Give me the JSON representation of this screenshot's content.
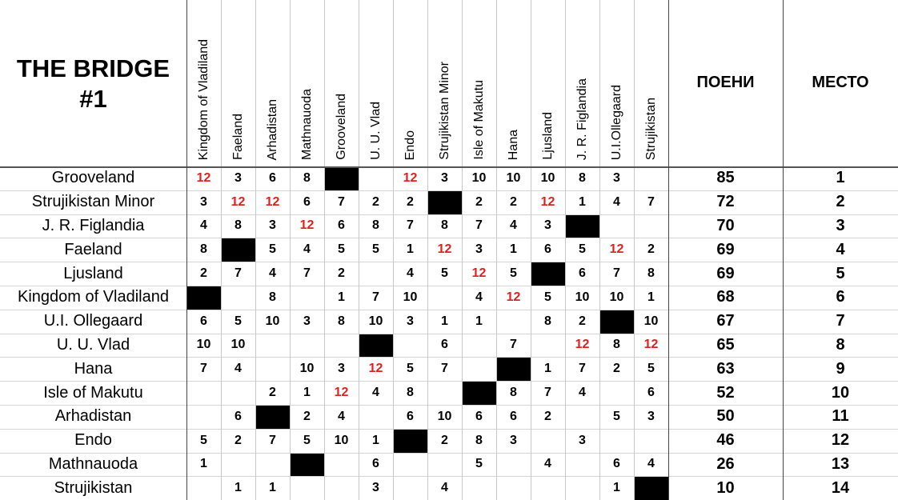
{
  "title": "THE BRIDGE #1",
  "columns": [
    "Kingdom of Vladiland",
    "Faeland",
    "Arhadistan",
    "Mathnauoda",
    "Grooveland",
    "U. U. Vlad",
    "Endo",
    "Strujikistan Minor",
    "Isle of Makutu",
    "Hana",
    "Ljusland",
    "J. R. Figlandia",
    "U.I.Ollegaard",
    "Strujikistan"
  ],
  "points_header": "ПОЕНИ",
  "place_header": "МЕСТО",
  "rows": [
    {
      "country": "Grooveland",
      "scores": [
        12,
        3,
        6,
        8,
        null,
        null,
        12,
        3,
        10,
        10,
        10,
        8,
        3,
        null
      ],
      "points": 85,
      "place": 1
    },
    {
      "country": "Strujikistan Minor",
      "scores": [
        3,
        12,
        12,
        6,
        7,
        2,
        2,
        null,
        2,
        2,
        12,
        1,
        4,
        7
      ],
      "points": 72,
      "place": 2
    },
    {
      "country": "J. R. Figlandia",
      "scores": [
        4,
        8,
        3,
        12,
        6,
        8,
        7,
        8,
        7,
        4,
        3,
        null,
        null,
        null
      ],
      "points": 70,
      "place": 3
    },
    {
      "country": "Faeland",
      "scores": [
        8,
        null,
        5,
        4,
        5,
        5,
        1,
        12,
        3,
        1,
        6,
        5,
        12,
        2
      ],
      "points": 69,
      "place": 4
    },
    {
      "country": "Ljusland",
      "scores": [
        2,
        7,
        4,
        7,
        2,
        null,
        4,
        5,
        12,
        5,
        null,
        6,
        7,
        8
      ],
      "points": 69,
      "place": 5
    },
    {
      "country": "Kingdom of Vladiland",
      "scores": [
        null,
        null,
        8,
        null,
        1,
        7,
        10,
        null,
        4,
        12,
        5,
        10,
        10,
        1
      ],
      "points": 68,
      "place": 6
    },
    {
      "country": "U.I. Ollegaard",
      "scores": [
        6,
        5,
        10,
        3,
        8,
        10,
        3,
        1,
        1,
        null,
        8,
        2,
        null,
        10
      ],
      "points": 67,
      "place": 7
    },
    {
      "country": "U. U. Vlad",
      "scores": [
        10,
        10,
        null,
        null,
        null,
        null,
        null,
        6,
        null,
        7,
        null,
        12,
        8,
        12
      ],
      "points": 65,
      "place": 8
    },
    {
      "country": "Hana",
      "scores": [
        7,
        4,
        null,
        10,
        3,
        12,
        5,
        7,
        null,
        null,
        1,
        7,
        2,
        5
      ],
      "points": 63,
      "place": 9
    },
    {
      "country": "Isle of Makutu",
      "scores": [
        null,
        null,
        2,
        1,
        12,
        4,
        8,
        null,
        null,
        8,
        7,
        4,
        null,
        6
      ],
      "points": 52,
      "place": 10
    },
    {
      "country": "Arhadistan",
      "scores": [
        null,
        6,
        null,
        2,
        4,
        null,
        6,
        10,
        6,
        6,
        2,
        null,
        5,
        3
      ],
      "points": 50,
      "place": 11
    },
    {
      "country": "Endo",
      "scores": [
        5,
        2,
        7,
        5,
        10,
        1,
        null,
        2,
        8,
        3,
        null,
        3,
        null,
        null
      ],
      "points": 46,
      "place": 12
    },
    {
      "country": "Mathnauoda",
      "scores": [
        1,
        null,
        null,
        null,
        null,
        6,
        null,
        null,
        5,
        null,
        4,
        null,
        6,
        4
      ],
      "points": 26,
      "place": 13
    },
    {
      "country": "Strujikistan",
      "scores": [
        null,
        1,
        1,
        null,
        null,
        3,
        null,
        4,
        null,
        null,
        null,
        null,
        1,
        null
      ],
      "points": 10,
      "place": 14
    }
  ]
}
